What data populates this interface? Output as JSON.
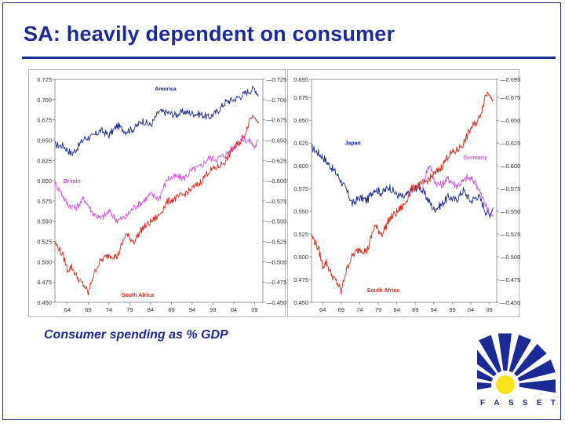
{
  "slide": {
    "title": "SA: heavily dependent on consumer",
    "caption": "Consumer spending as % GDP",
    "logo_text": [
      "F",
      "A",
      "S",
      "S",
      "E",
      "T"
    ]
  },
  "colors": {
    "title": "#1c2a96",
    "america": "#1b2a8f",
    "japan": "#1b2a8f",
    "south_africa": "#d4291c",
    "britain": "#cf52d8",
    "germany": "#cf52d8",
    "logo_yellow": "#f7e21b"
  },
  "icons": {
    "logo": "fasset-sunburst-logo"
  },
  "chart_data": [
    {
      "type": "line",
      "x_tick_labels": [
        "64",
        "69",
        "74",
        "79",
        "84",
        "89",
        "94",
        "99",
        "04",
        "09"
      ],
      "x_ticks": [
        1964,
        1969,
        1974,
        1979,
        1984,
        1989,
        1994,
        1999,
        2004,
        2009
      ],
      "xlim": [
        1961,
        2011
      ],
      "ylim": [
        0.45,
        0.725
      ],
      "y_ticks": [
        "0.450",
        "0.475",
        "0.500",
        "0.525",
        "0.550",
        "0.575",
        "0.600",
        "0.625",
        "0.650",
        "0.675",
        "0.700",
        "0.725"
      ],
      "y_axis_sides": "left and right",
      "grid": false,
      "series": [
        {
          "name": "America",
          "color": "#1b2a8f",
          "x": [
            1961,
            1963,
            1965,
            1966,
            1968,
            1970,
            1972,
            1974,
            1976,
            1978,
            1980,
            1982,
            1984,
            1986,
            1988,
            1990,
            1992,
            1994,
            1996,
            1998,
            2000,
            2002,
            2004,
            2006,
            2007,
            2008,
            2009,
            2010
          ],
          "y": [
            0.644,
            0.643,
            0.633,
            0.638,
            0.652,
            0.654,
            0.662,
            0.656,
            0.668,
            0.661,
            0.664,
            0.674,
            0.668,
            0.685,
            0.684,
            0.681,
            0.685,
            0.683,
            0.682,
            0.678,
            0.685,
            0.697,
            0.7,
            0.705,
            0.709,
            0.711,
            0.714,
            0.705
          ]
        },
        {
          "name": "Britain",
          "color": "#cf52d8",
          "x": [
            1961,
            1962,
            1964,
            1966,
            1968,
            1970,
            1972,
            1974,
            1976,
            1978,
            1980,
            1982,
            1984,
            1986,
            1988,
            1990,
            1992,
            1994,
            1996,
            1998,
            2000,
            2002,
            2004,
            2006,
            2008,
            2009,
            2010
          ],
          "y": [
            0.597,
            0.59,
            0.571,
            0.566,
            0.578,
            0.561,
            0.553,
            0.562,
            0.551,
            0.555,
            0.567,
            0.574,
            0.583,
            0.578,
            0.602,
            0.605,
            0.603,
            0.613,
            0.617,
            0.628,
            0.627,
            0.632,
            0.641,
            0.652,
            0.648,
            0.641,
            0.65
          ]
        },
        {
          "name": "South Africa",
          "color": "#d4291c",
          "x": [
            1961,
            1962,
            1963,
            1964,
            1965,
            1966,
            1967,
            1968,
            1969,
            1970,
            1971,
            1972,
            1974,
            1976,
            1978,
            1980,
            1982,
            1984,
            1986,
            1988,
            1990,
            1992,
            1994,
            1996,
            1998,
            2000,
            2002,
            2004,
            2006,
            2007,
            2008,
            2009,
            2010
          ],
          "y": [
            0.523,
            0.516,
            0.507,
            0.49,
            0.494,
            0.484,
            0.476,
            0.471,
            0.461,
            0.48,
            0.492,
            0.501,
            0.509,
            0.506,
            0.534,
            0.525,
            0.541,
            0.549,
            0.557,
            0.574,
            0.578,
            0.583,
            0.59,
            0.598,
            0.612,
            0.616,
            0.624,
            0.641,
            0.65,
            0.662,
            0.678,
            0.681,
            0.673
          ]
        }
      ],
      "annotations": [
        "America",
        "Britain",
        "South Africa"
      ]
    },
    {
      "type": "line",
      "x_tick_labels": [
        "64",
        "69",
        "74",
        "79",
        "84",
        "89",
        "94",
        "99",
        "04",
        "09"
      ],
      "x_ticks": [
        1964,
        1969,
        1974,
        1979,
        1984,
        1989,
        1994,
        1999,
        2004,
        2009
      ],
      "xlim": [
        1961,
        2011
      ],
      "ylim": [
        0.45,
        0.695
      ],
      "y_ticks_left": [
        "0.450",
        "0.475",
        "0.500",
        "0.525",
        "0.550",
        "0.575",
        "0.600",
        "0.625",
        "0.650",
        "0.675",
        "0.695"
      ],
      "y_ticks_right": [
        "0.450",
        "0.475",
        "0.500",
        "0.525",
        "0.550",
        "0.575",
        "0.600",
        "0.625",
        "0.650",
        "0.675",
        "0.695"
      ],
      "grid": false,
      "series": [
        {
          "name": "Japan",
          "color": "#1b2a8f",
          "x": [
            1961,
            1962,
            1964,
            1966,
            1968,
            1970,
            1971,
            1972,
            1974,
            1976,
            1978,
            1980,
            1982,
            1984,
            1986,
            1988,
            1990,
            1992,
            1994,
            1996,
            1998,
            2000,
            2002,
            2004,
            2006,
            2007,
            2008,
            2009,
            2010
          ],
          "y": [
            0.62,
            0.617,
            0.61,
            0.6,
            0.59,
            0.576,
            0.568,
            0.558,
            0.565,
            0.562,
            0.575,
            0.57,
            0.577,
            0.568,
            0.565,
            0.573,
            0.578,
            0.566,
            0.552,
            0.557,
            0.566,
            0.562,
            0.573,
            0.561,
            0.567,
            0.56,
            0.55,
            0.546,
            0.554
          ]
        },
        {
          "name": "Germany",
          "color": "#cf52d8",
          "x": [
            1991,
            1992,
            1993,
            1994,
            1995,
            1996,
            1998,
            2000,
            2002,
            2003,
            2004,
            2005,
            2006,
            2007,
            2008,
            2009,
            2010
          ],
          "y": [
            0.576,
            0.593,
            0.602,
            0.585,
            0.58,
            0.579,
            0.586,
            0.578,
            0.583,
            0.587,
            0.585,
            0.583,
            0.576,
            0.566,
            0.557,
            0.548,
            0.546
          ]
        },
        {
          "name": "South Africa",
          "color": "#d4291c",
          "x": [
            1961,
            1962,
            1963,
            1964,
            1965,
            1966,
            1967,
            1968,
            1969,
            1970,
            1971,
            1972,
            1974,
            1976,
            1978,
            1980,
            1982,
            1984,
            1986,
            1988,
            1990,
            1992,
            1994,
            1996,
            1998,
            2000,
            2002,
            2004,
            2006,
            2007,
            2008,
            2009,
            2010
          ],
          "y": [
            0.523,
            0.516,
            0.507,
            0.49,
            0.494,
            0.484,
            0.476,
            0.471,
            0.461,
            0.48,
            0.492,
            0.501,
            0.509,
            0.506,
            0.534,
            0.525,
            0.541,
            0.549,
            0.557,
            0.574,
            0.578,
            0.583,
            0.59,
            0.598,
            0.612,
            0.616,
            0.624,
            0.641,
            0.65,
            0.662,
            0.678,
            0.681,
            0.673
          ]
        }
      ],
      "annotations": [
        "Japan",
        "Germany",
        "South Africa"
      ]
    }
  ]
}
